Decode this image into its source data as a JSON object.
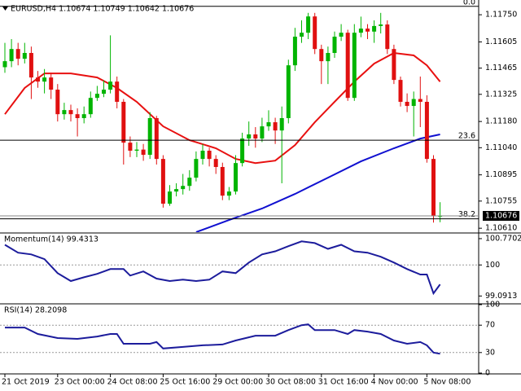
{
  "chart_data": [
    {
      "type": "candlestick",
      "title": "EURUSD,H4 1.10674 1.10749 1.10642 1.10676",
      "categories": [
        "21 Oct 2019",
        null,
        null,
        null,
        null,
        null,
        null,
        null,
        "23 Oct 00:00",
        null,
        null,
        null,
        null,
        null,
        null,
        null,
        "24 Oct 08:00",
        null,
        null,
        null,
        null,
        null,
        null,
        null,
        "25 Oct 16:00",
        null,
        null,
        null,
        null,
        null,
        null,
        null,
        "29 Oct 00:00",
        null,
        null,
        null,
        null,
        null,
        null,
        null,
        "30 Oct 08:00",
        null,
        null,
        null,
        null,
        null,
        null,
        null,
        "31 Oct 16:00",
        null,
        null,
        null,
        null,
        null,
        null,
        null,
        "4 Nov 00:00",
        null,
        null,
        null,
        null,
        null,
        null,
        null,
        "5 Nov 08:00",
        null,
        null
      ],
      "open": [
        1.1147,
        1.11502,
        1.11567,
        1.11515,
        1.11546,
        1.11415,
        1.11393,
        1.11415,
        1.1135,
        1.11219,
        1.11241,
        1.11219,
        1.11198,
        1.11219,
        1.11306,
        1.11328,
        1.1135,
        1.11393,
        1.11285,
        1.11067,
        1.11024,
        1.1103,
        1.11002,
        1.11198,
        1.1098,
        1.10741,
        1.10806,
        1.10819,
        1.10836,
        1.1088,
        1.1098,
        1.11024,
        1.1098,
        1.10937,
        1.10784,
        1.10806,
        1.10958,
        1.11089,
        1.11111,
        1.11089,
        1.11154,
        1.11176,
        1.11132,
        1.11198,
        1.1148,
        1.11633,
        1.11654,
        1.11741,
        1.11567,
        1.11502,
        1.11546,
        1.11633,
        1.11654,
        1.11306,
        1.11654,
        1.11676,
        1.1166,
        1.1169,
        1.11698,
        1.11567,
        1.11402,
        1.11285,
        1.11263,
        1.113,
        1.11285,
        1.1098,
        1.10674
      ],
      "high": [
        1.116,
        1.1162,
        1.116,
        1.116,
        1.1158,
        1.1145,
        1.1146,
        1.1144,
        1.1138,
        1.1128,
        1.1127,
        1.1125,
        1.1126,
        1.1134,
        1.1137,
        1.114,
        1.1164,
        1.1142,
        1.113,
        1.111,
        1.1107,
        1.1106,
        1.1123,
        1.1121,
        1.11,
        1.1084,
        1.1085,
        1.109,
        1.1092,
        1.1102,
        1.1106,
        1.1104,
        1.11,
        1.1096,
        1.1083,
        1.11,
        1.1112,
        1.1118,
        1.1115,
        1.112,
        1.1124,
        1.112,
        1.1126,
        1.1151,
        1.1168,
        1.1172,
        1.1176,
        1.1176,
        1.1159,
        1.1158,
        1.1166,
        1.117,
        1.1167,
        1.117,
        1.1174,
        1.117,
        1.1172,
        1.1176,
        1.1172,
        1.1159,
        1.1142,
        1.1133,
        1.1134,
        1.1142,
        1.1132,
        1.11,
        1.10749
      ],
      "low": [
        1.1144,
        1.1147,
        1.1148,
        1.1149,
        1.113,
        1.1136,
        1.1133,
        1.113,
        1.1118,
        1.1119,
        1.1118,
        1.111,
        1.1117,
        1.112,
        1.1129,
        1.1131,
        1.1133,
        1.1125,
        1.1095,
        1.1099,
        1.1099,
        1.1097,
        1.1098,
        1.1095,
        1.1072,
        1.1073,
        1.1078,
        1.1079,
        1.1081,
        1.1086,
        1.1095,
        1.1094,
        1.109,
        1.1076,
        1.1076,
        1.1079,
        1.1094,
        1.1105,
        1.1104,
        1.1107,
        1.1113,
        1.1106,
        1.1085,
        1.1117,
        1.1145,
        1.116,
        1.1162,
        1.1154,
        1.1138,
        1.1138,
        1.1152,
        1.1161,
        1.1129,
        1.1129,
        1.1163,
        1.1162,
        1.116,
        1.1165,
        1.1154,
        1.1138,
        1.1126,
        1.1123,
        1.111,
        1.1115,
        1.1096,
        1.1064,
        1.10642
      ],
      "close": [
        1.11502,
        1.11567,
        1.11515,
        1.11546,
        1.11415,
        1.11393,
        1.11415,
        1.1135,
        1.11219,
        1.11241,
        1.11219,
        1.11198,
        1.11219,
        1.11306,
        1.11328,
        1.1135,
        1.11393,
        1.11285,
        1.11067,
        1.11024,
        1.1103,
        1.11002,
        1.11198,
        1.1098,
        1.10741,
        1.10806,
        1.10819,
        1.10836,
        1.1088,
        1.1098,
        1.11024,
        1.1098,
        1.10937,
        1.10784,
        1.10806,
        1.10958,
        1.11089,
        1.11111,
        1.11089,
        1.11154,
        1.11176,
        1.11132,
        1.11198,
        1.1148,
        1.11633,
        1.11654,
        1.11741,
        1.11567,
        1.11502,
        1.11546,
        1.11633,
        1.11654,
        1.11306,
        1.11654,
        1.11676,
        1.1166,
        1.1169,
        1.11698,
        1.11567,
        1.11402,
        1.11285,
        1.11263,
        1.113,
        1.11285,
        1.1098,
        1.10674,
        1.10676
      ],
      "up_color": "#00b400",
      "down_color": "#e01010",
      "lines": [
        {
          "color": "#e81010",
          "x": [
            0,
            3,
            6,
            10,
            14,
            17,
            20,
            24,
            28,
            32,
            35,
            38,
            41,
            44,
            47,
            50,
            53,
            56,
            59,
            62,
            64,
            66
          ],
          "values": [
            1.11219,
            1.11359,
            1.11437,
            1.11437,
            1.11415,
            1.11359,
            1.11285,
            1.11154,
            1.1108,
            1.11037,
            1.1098,
            1.10958,
            1.10971,
            1.11054,
            1.11176,
            1.11285,
            1.11393,
            1.11489,
            1.11546,
            1.11533,
            1.1148,
            1.11393
          ]
        },
        {
          "color": "#1010d0",
          "x": [
            29,
            34,
            39,
            44,
            49,
            54,
            59,
            63,
            66
          ],
          "values": [
            1.10589,
            1.10654,
            1.10715,
            1.10793,
            1.1088,
            1.10967,
            1.11037,
            1.11089,
            1.11111
          ]
        }
      ],
      "levels": [
        {
          "name": "0.0",
          "price": 1.11795
        },
        {
          "name": "23.6",
          "price": 1.1108
        },
        {
          "name": "38.2",
          "price": 1.1066
        }
      ],
      "last_price": 1.10676,
      "ylim": [
        1.10589,
        1.11807
      ],
      "yticks": [
        {
          "value": 1.1175,
          "label": "1.11750"
        },
        {
          "value": 1.11605,
          "label": "1.11605"
        },
        {
          "value": 1.11465,
          "label": "1.11465"
        },
        {
          "value": 1.11325,
          "label": "1.11325"
        },
        {
          "value": 1.1118,
          "label": "1.11180"
        },
        {
          "value": 1.1104,
          "label": "1.11040"
        },
        {
          "value": 1.10895,
          "label": "1.10895"
        },
        {
          "value": 1.10755,
          "label": "1.10755"
        },
        {
          "value": 1.1061,
          "label": "1.10610"
        }
      ]
    },
    {
      "type": "line",
      "title": "Momentum(14) 99.4313",
      "color": "#1c1c9c",
      "x": [
        0,
        2,
        4,
        6,
        8,
        10,
        12,
        14,
        16,
        18,
        19,
        21,
        23,
        25,
        27,
        29,
        31,
        33,
        35,
        37,
        39,
        41,
        43,
        45,
        47,
        49,
        51,
        53,
        55,
        57,
        59,
        61,
        63,
        64,
        65,
        66
      ],
      "values": [
        100.59,
        100.36,
        100.31,
        100.17,
        99.76,
        99.53,
        99.64,
        99.74,
        99.88,
        99.88,
        99.69,
        99.81,
        99.6,
        99.53,
        99.57,
        99.53,
        99.57,
        99.81,
        99.76,
        100.07,
        100.31,
        100.4,
        100.55,
        100.69,
        100.64,
        100.47,
        100.59,
        100.4,
        100.36,
        100.24,
        100.07,
        99.88,
        99.72,
        99.72,
        99.17,
        99.4313
      ],
      "dotted_levels": [
        100
      ],
      "ylim": [
        98.886,
        100.912
      ],
      "yticks": [
        100.7702,
        100,
        99.0913
      ]
    },
    {
      "type": "line",
      "title": "RSI(14) 28.2098",
      "color": "#1c1c9c",
      "x": [
        0,
        3,
        5,
        8,
        11,
        14,
        16,
        17,
        18,
        22,
        23,
        24,
        27,
        30,
        33,
        35,
        38,
        41,
        43,
        45,
        46,
        47,
        50,
        52,
        53,
        55,
        57,
        59,
        61,
        63,
        64,
        65,
        66
      ],
      "values": [
        66.5,
        66.5,
        57.1,
        51.2,
        50.0,
        53.5,
        57.1,
        57.1,
        42.9,
        42.9,
        45.3,
        35.9,
        38.2,
        40.6,
        41.8,
        47.6,
        54.7,
        54.7,
        62.9,
        70.0,
        71.2,
        62.9,
        62.9,
        57.1,
        62.9,
        60.6,
        57.1,
        47.6,
        42.9,
        45.3,
        40.6,
        30.0,
        28.2098
      ],
      "dotted_levels": [
        70,
        30
      ],
      "ylim": [
        0,
        100
      ],
      "yticks": [
        100,
        70,
        30,
        0
      ]
    }
  ]
}
